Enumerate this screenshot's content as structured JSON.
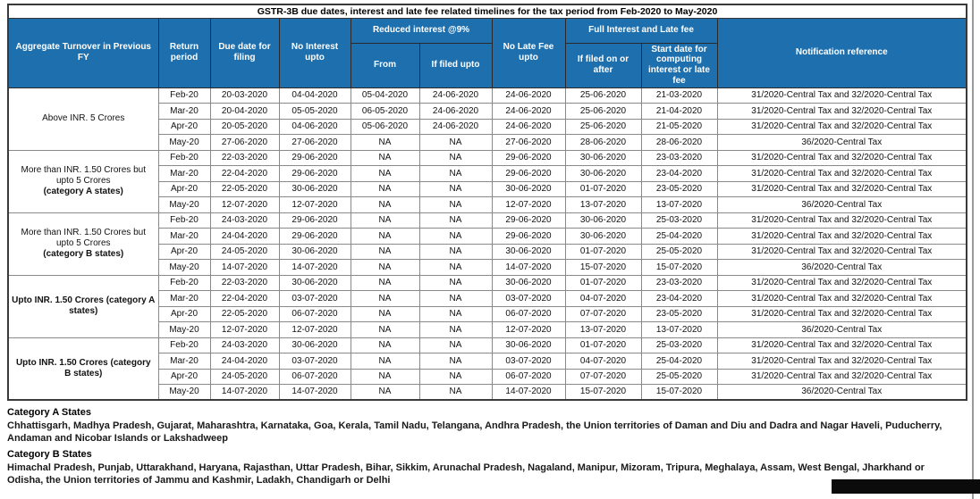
{
  "title": "GSTR-3B due dates, interest and late fee related timelines for the tax period from Feb-2020 to May-2020",
  "colors": {
    "header_bg": "#1e6fad",
    "header_text": "#ffffff"
  },
  "table": {
    "columns": {
      "turnover": "Aggregate Turnover in Previous FY",
      "return_period": "Return period",
      "due_date": "Due date for filing",
      "no_interest": "No Interest upto",
      "reduced_interest": "Reduced interest @9%",
      "from": "From",
      "if_filed_upto": "If filed upto",
      "no_late_fee": "No Late Fee upto",
      "full_interest": "Full Interest and Late fee",
      "if_filed_on_or_after": "If filed on or after",
      "start_date": "Start date for computing interest or late fee",
      "notification": "Notification reference"
    },
    "groups": [
      {
        "label": "Above INR. 5 Crores",
        "sub": "",
        "bold": false,
        "rows": [
          [
            "Feb-20",
            "20-03-2020",
            "04-04-2020",
            "05-04-2020",
            "24-06-2020",
            "24-06-2020",
            "25-06-2020",
            "21-03-2020",
            "31/2020-Central Tax and 32/2020-Central Tax"
          ],
          [
            "Mar-20",
            "20-04-2020",
            "05-05-2020",
            "06-05-2020",
            "24-06-2020",
            "24-06-2020",
            "25-06-2020",
            "21-04-2020",
            "31/2020-Central Tax and 32/2020-Central Tax"
          ],
          [
            "Apr-20",
            "20-05-2020",
            "04-06-2020",
            "05-06-2020",
            "24-06-2020",
            "24-06-2020",
            "25-06-2020",
            "21-05-2020",
            "31/2020-Central Tax and 32/2020-Central Tax"
          ],
          [
            "May-20",
            "27-06-2020",
            "27-06-2020",
            "NA",
            "NA",
            "27-06-2020",
            "28-06-2020",
            "28-06-2020",
            "36/2020-Central Tax"
          ]
        ]
      },
      {
        "label": "More than INR. 1.50 Crores but upto 5 Crores",
        "sub": "(category A states)",
        "bold": false,
        "rows": [
          [
            "Feb-20",
            "22-03-2020",
            "29-06-2020",
            "NA",
            "NA",
            "29-06-2020",
            "30-06-2020",
            "23-03-2020",
            "31/2020-Central Tax and 32/2020-Central Tax"
          ],
          [
            "Mar-20",
            "22-04-2020",
            "29-06-2020",
            "NA",
            "NA",
            "29-06-2020",
            "30-06-2020",
            "23-04-2020",
            "31/2020-Central Tax and 32/2020-Central Tax"
          ],
          [
            "Apr-20",
            "22-05-2020",
            "30-06-2020",
            "NA",
            "NA",
            "30-06-2020",
            "01-07-2020",
            "23-05-2020",
            "31/2020-Central Tax and 32/2020-Central Tax"
          ],
          [
            "May-20",
            "12-07-2020",
            "12-07-2020",
            "NA",
            "NA",
            "12-07-2020",
            "13-07-2020",
            "13-07-2020",
            "36/2020-Central Tax"
          ]
        ]
      },
      {
        "label": "More than INR. 1.50 Crores but upto 5 Crores",
        "sub": "(category B states)",
        "bold": false,
        "rows": [
          [
            "Feb-20",
            "24-03-2020",
            "29-06-2020",
            "NA",
            "NA",
            "29-06-2020",
            "30-06-2020",
            "25-03-2020",
            "31/2020-Central Tax and 32/2020-Central Tax"
          ],
          [
            "Mar-20",
            "24-04-2020",
            "29-06-2020",
            "NA",
            "NA",
            "29-06-2020",
            "30-06-2020",
            "25-04-2020",
            "31/2020-Central Tax and 32/2020-Central Tax"
          ],
          [
            "Apr-20",
            "24-05-2020",
            "30-06-2020",
            "NA",
            "NA",
            "30-06-2020",
            "01-07-2020",
            "25-05-2020",
            "31/2020-Central Tax and 32/2020-Central Tax"
          ],
          [
            "May-20",
            "14-07-2020",
            "14-07-2020",
            "NA",
            "NA",
            "14-07-2020",
            "15-07-2020",
            "15-07-2020",
            "36/2020-Central Tax"
          ]
        ]
      },
      {
        "label": "Upto INR. 1.50 Crores (category A states)",
        "sub": "",
        "bold": true,
        "rows": [
          [
            "Feb-20",
            "22-03-2020",
            "30-06-2020",
            "NA",
            "NA",
            "30-06-2020",
            "01-07-2020",
            "23-03-2020",
            "31/2020-Central Tax and 32/2020-Central Tax"
          ],
          [
            "Mar-20",
            "22-04-2020",
            "03-07-2020",
            "NA",
            "NA",
            "03-07-2020",
            "04-07-2020",
            "23-04-2020",
            "31/2020-Central Tax and 32/2020-Central Tax"
          ],
          [
            "Apr-20",
            "22-05-2020",
            "06-07-2020",
            "NA",
            "NA",
            "06-07-2020",
            "07-07-2020",
            "23-05-2020",
            "31/2020-Central Tax and 32/2020-Central Tax"
          ],
          [
            "May-20",
            "12-07-2020",
            "12-07-2020",
            "NA",
            "NA",
            "12-07-2020",
            "13-07-2020",
            "13-07-2020",
            "36/2020-Central Tax"
          ]
        ]
      },
      {
        "label": "Upto INR. 1.50 Crores (category B states)",
        "sub": "",
        "bold": true,
        "rows": [
          [
            "Feb-20",
            "24-03-2020",
            "30-06-2020",
            "NA",
            "NA",
            "30-06-2020",
            "01-07-2020",
            "25-03-2020",
            "31/2020-Central Tax and 32/2020-Central Tax"
          ],
          [
            "Mar-20",
            "24-04-2020",
            "03-07-2020",
            "NA",
            "NA",
            "03-07-2020",
            "04-07-2020",
            "25-04-2020",
            "31/2020-Central Tax and 32/2020-Central Tax"
          ],
          [
            "Apr-20",
            "24-05-2020",
            "06-07-2020",
            "NA",
            "NA",
            "06-07-2020",
            "07-07-2020",
            "25-05-2020",
            "31/2020-Central Tax and 32/2020-Central Tax"
          ],
          [
            "May-20",
            "14-07-2020",
            "14-07-2020",
            "NA",
            "NA",
            "14-07-2020",
            "15-07-2020",
            "15-07-2020",
            "36/2020-Central Tax"
          ]
        ]
      }
    ]
  },
  "notes": {
    "category_a_title": "Category A States",
    "category_a_text": "Chhattisgarh, Madhya Pradesh, Gujarat, Maharashtra, Karnataka, Goa, Kerala, Tamil Nadu, Telangana, Andhra Pradesh, the Union territories of Daman and Diu and Dadra and Nagar Haveli, Puducherry, Andaman and Nicobar Islands or Lakshadweep",
    "category_b_title": "Category B States",
    "category_b_text": "Himachal Pradesh, Punjab, Uttarakhand, Haryana, Rajasthan, Uttar Pradesh, Bihar, Sikkim, Arunachal Pradesh, Nagaland, Manipur, Mizoram, Tripura, Meghalaya, Assam, West Bengal, Jharkhand or Odisha, the Union territories of Jammu and Kashmir, Ladakh, Chandigarh or Delhi"
  }
}
